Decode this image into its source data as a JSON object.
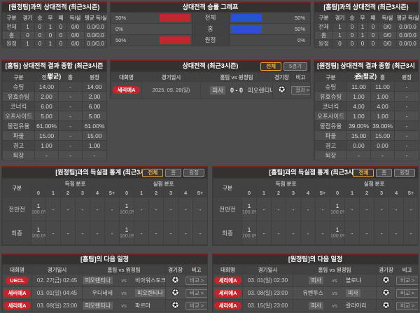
{
  "theme": {
    "bar_red": "#c1272d",
    "bar_blue": "#2b50d4",
    "badge_red": "#c4242c",
    "selected_filter": "#f4b043",
    "panel_accent": "#732520"
  },
  "top_left": {
    "title": "[원정팀]과의 상대전적 (최근3시즌)",
    "columns": [
      "구분",
      "경기",
      "승",
      "무",
      "패",
      "득/실",
      "평균 득/실"
    ],
    "rows": [
      {
        "label": "전체",
        "values": [
          "1",
          "0",
          "1",
          "0",
          "0/0",
          "0.0/0.0"
        ]
      },
      {
        "label": "홈",
        "values": [
          "0",
          "0",
          "0",
          "0",
          "0/0",
          "0.0/0.0"
        ]
      },
      {
        "label": "원정",
        "values": [
          "1",
          "0",
          "1",
          "0",
          "0/0",
          "0.0/0.0"
        ]
      }
    ]
  },
  "winrate": {
    "title": "상대전적 승률 그래프",
    "rows": [
      {
        "label": "전체",
        "left_pct": 50,
        "right_pct": 50
      },
      {
        "label": "홈",
        "left_pct": 0,
        "right_pct": 50
      },
      {
        "label": "원정",
        "left_pct": 50,
        "right_pct": 0
      }
    ]
  },
  "top_right": {
    "title": "[홈팀]과의 상대전적 (최근3시즌)",
    "columns": [
      "구분",
      "경기",
      "승",
      "무",
      "패",
      "득/실",
      "평균 득/실"
    ],
    "rows": [
      {
        "label": "전체",
        "values": [
          "1",
          "0",
          "1",
          "0",
          "0/0",
          "0.0/0.0"
        ]
      },
      {
        "label": "홈",
        "values": [
          "1",
          "0",
          "1",
          "0",
          "0/0",
          "0.0/0.0"
        ]
      },
      {
        "label": "원정",
        "values": [
          "0",
          "0",
          "0",
          "0",
          "0/0",
          "0.0/0.0"
        ]
      }
    ]
  },
  "home_summary": {
    "title": "[홈팀] 상대전적 결과 종합 (최근3시즌 평균)",
    "columns": [
      "구분",
      "전체",
      "홈",
      "원정"
    ],
    "rows": [
      {
        "label": "슈팅",
        "values": [
          "14.00",
          "-",
          "14.00"
        ]
      },
      {
        "label": "유효슈팅",
        "values": [
          "2.00",
          "-",
          "2.00"
        ]
      },
      {
        "label": "코너킥",
        "values": [
          "6.00",
          "-",
          "6.00"
        ]
      },
      {
        "label": "오프사이드",
        "values": [
          "5.00",
          "-",
          "5.00"
        ]
      },
      {
        "label": "볼점유율",
        "values": [
          "61.00%",
          "-",
          "61.00%"
        ]
      },
      {
        "label": "파울",
        "values": [
          "15.00",
          "-",
          "15.00"
        ]
      },
      {
        "label": "경고",
        "values": [
          "1.00",
          "-",
          "1.00"
        ]
      },
      {
        "label": "퇴장",
        "values": [
          "-",
          "-",
          "-"
        ]
      }
    ]
  },
  "matches": {
    "title": "상대전적 (최근3시즌)",
    "filters": [
      {
        "label": "전체",
        "selected": true
      },
      {
        "label": "5경기",
        "selected": false
      }
    ],
    "columns": [
      "대회명",
      "경기일시",
      "홈팀 vs 원정팀",
      "경기장",
      "비고"
    ],
    "rows": [
      {
        "league": "세리에A",
        "datetime": "2025. 09. 28(일)",
        "home": "피사",
        "home_hl": true,
        "score": "0 - 0",
        "away": "피오렌티나",
        "away_hl": false,
        "note": "결과 >"
      }
    ]
  },
  "away_summary": {
    "title": "[원정팀] 상대전적 결과 종합 (최근3시즌 평균)",
    "columns": [
      "구분",
      "전체",
      "홈",
      "원정"
    ],
    "rows": [
      {
        "label": "슈팅",
        "values": [
          "11.00",
          "11.00",
          "-"
        ]
      },
      {
        "label": "유효슈팅",
        "values": [
          "1.00",
          "1.00",
          "-"
        ]
      },
      {
        "label": "코너킥",
        "values": [
          "4.00",
          "4.00",
          "-"
        ]
      },
      {
        "label": "오프사이드",
        "values": [
          "1.00",
          "1.00",
          "-"
        ]
      },
      {
        "label": "볼점유율",
        "values": [
          "39.00%",
          "39.00%",
          "-"
        ]
      },
      {
        "label": "파울",
        "values": [
          "15.00",
          "15.00",
          "-"
        ]
      },
      {
        "label": "경고",
        "values": [
          "0.00",
          "0.00",
          "-"
        ]
      },
      {
        "label": "퇴장",
        "values": [
          "-",
          "-",
          "-"
        ]
      }
    ]
  },
  "goals_left": {
    "title": "[원정팀]과의 득실점 통계 (최근3시즌)",
    "filters": [
      {
        "label": "전체",
        "selected": true
      },
      {
        "label": "홈",
        "selected": false
      },
      {
        "label": "원정",
        "selected": false
      }
    ],
    "corner": "구분",
    "groups": [
      "득점 분포",
      "실점 분포"
    ],
    "bins": [
      "0",
      "1",
      "2",
      "3",
      "4",
      "5+"
    ],
    "rows": [
      {
        "label": "전반전",
        "scored": [
          {
            "n": "1",
            "pct": "100.0%"
          },
          "-",
          "-",
          "-",
          "-",
          "-"
        ],
        "conceded": [
          {
            "n": "1",
            "pct": "100.0%"
          },
          "-",
          "-",
          "-",
          "-",
          "-"
        ]
      },
      {
        "label": "최종",
        "scored": [
          {
            "n": "1",
            "pct": "100.0%"
          },
          "-",
          "-",
          "-",
          "-",
          "-"
        ],
        "conceded": [
          {
            "n": "1",
            "pct": "100.0%"
          },
          "-",
          "-",
          "-",
          "-",
          "-"
        ]
      }
    ]
  },
  "goals_right": {
    "title": "[홈팀]과의 득실점 통계 (최근3시즌)",
    "filters": [
      {
        "label": "전체",
        "selected": true
      },
      {
        "label": "홈",
        "selected": false
      },
      {
        "label": "원정",
        "selected": false
      }
    ],
    "corner": "구분",
    "groups": [
      "득점 분포",
      "실점 분포"
    ],
    "bins": [
      "0",
      "1",
      "2",
      "3",
      "4",
      "5+"
    ],
    "rows": [
      {
        "label": "전반전",
        "scored": [
          {
            "n": "1",
            "pct": "100.0%"
          },
          "-",
          "-",
          "-",
          "-",
          "-"
        ],
        "conceded": [
          {
            "n": "1",
            "pct": "100.0%"
          },
          "-",
          "-",
          "-",
          "-",
          "-"
        ]
      },
      {
        "label": "최종",
        "scored": [
          {
            "n": "1",
            "pct": "100.0%"
          },
          "-",
          "-",
          "-",
          "-",
          "-"
        ],
        "conceded": [
          {
            "n": "1",
            "pct": "100.0%"
          },
          "-",
          "-",
          "-",
          "-",
          "-"
        ]
      }
    ]
  },
  "schedule_left": {
    "title": "[홈팀]의 다음 일정",
    "columns": [
      "대회명",
      "경기일시",
      "홈팀 vs 원정팀",
      "경기장",
      "비고"
    ],
    "rows": [
      {
        "league": "UECL",
        "datetime": "02. 27(금) 02:45",
        "home": "피오렌티나",
        "home_hl": true,
        "away": "비아워스토크",
        "away_hl": false,
        "note": "비교 >"
      },
      {
        "league": "세리에A",
        "datetime": "03. 01(일) 04:45",
        "home": "우디네세",
        "home_hl": false,
        "away": "피오렌티나",
        "away_hl": true,
        "note": "비교 >"
      },
      {
        "league": "세리에A",
        "datetime": "03. 08(일) 23:00",
        "home": "피오렌티나",
        "home_hl": true,
        "away": "파르마",
        "away_hl": false,
        "note": "비교 >"
      }
    ]
  },
  "schedule_right": {
    "title": "[원정팀]의 다음 일정",
    "columns": [
      "대회명",
      "경기일시",
      "홈팀 vs 원정팀",
      "경기장",
      "비고"
    ],
    "rows": [
      {
        "league": "세리에A",
        "datetime": "03. 01(일) 02:30",
        "home": "피사",
        "home_hl": true,
        "away": "볼로냐",
        "away_hl": false,
        "note": "비교 >"
      },
      {
        "league": "세리에A",
        "datetime": "03. 08(일) 23:00",
        "home": "유벤투스",
        "home_hl": false,
        "away": "피사",
        "away_hl": true,
        "note": "비교 >"
      },
      {
        "league": "세리에A",
        "datetime": "03. 15(일) 23:00",
        "home": "피사",
        "home_hl": true,
        "away": "칼리아리",
        "away_hl": false,
        "note": "비교 >"
      }
    ]
  }
}
